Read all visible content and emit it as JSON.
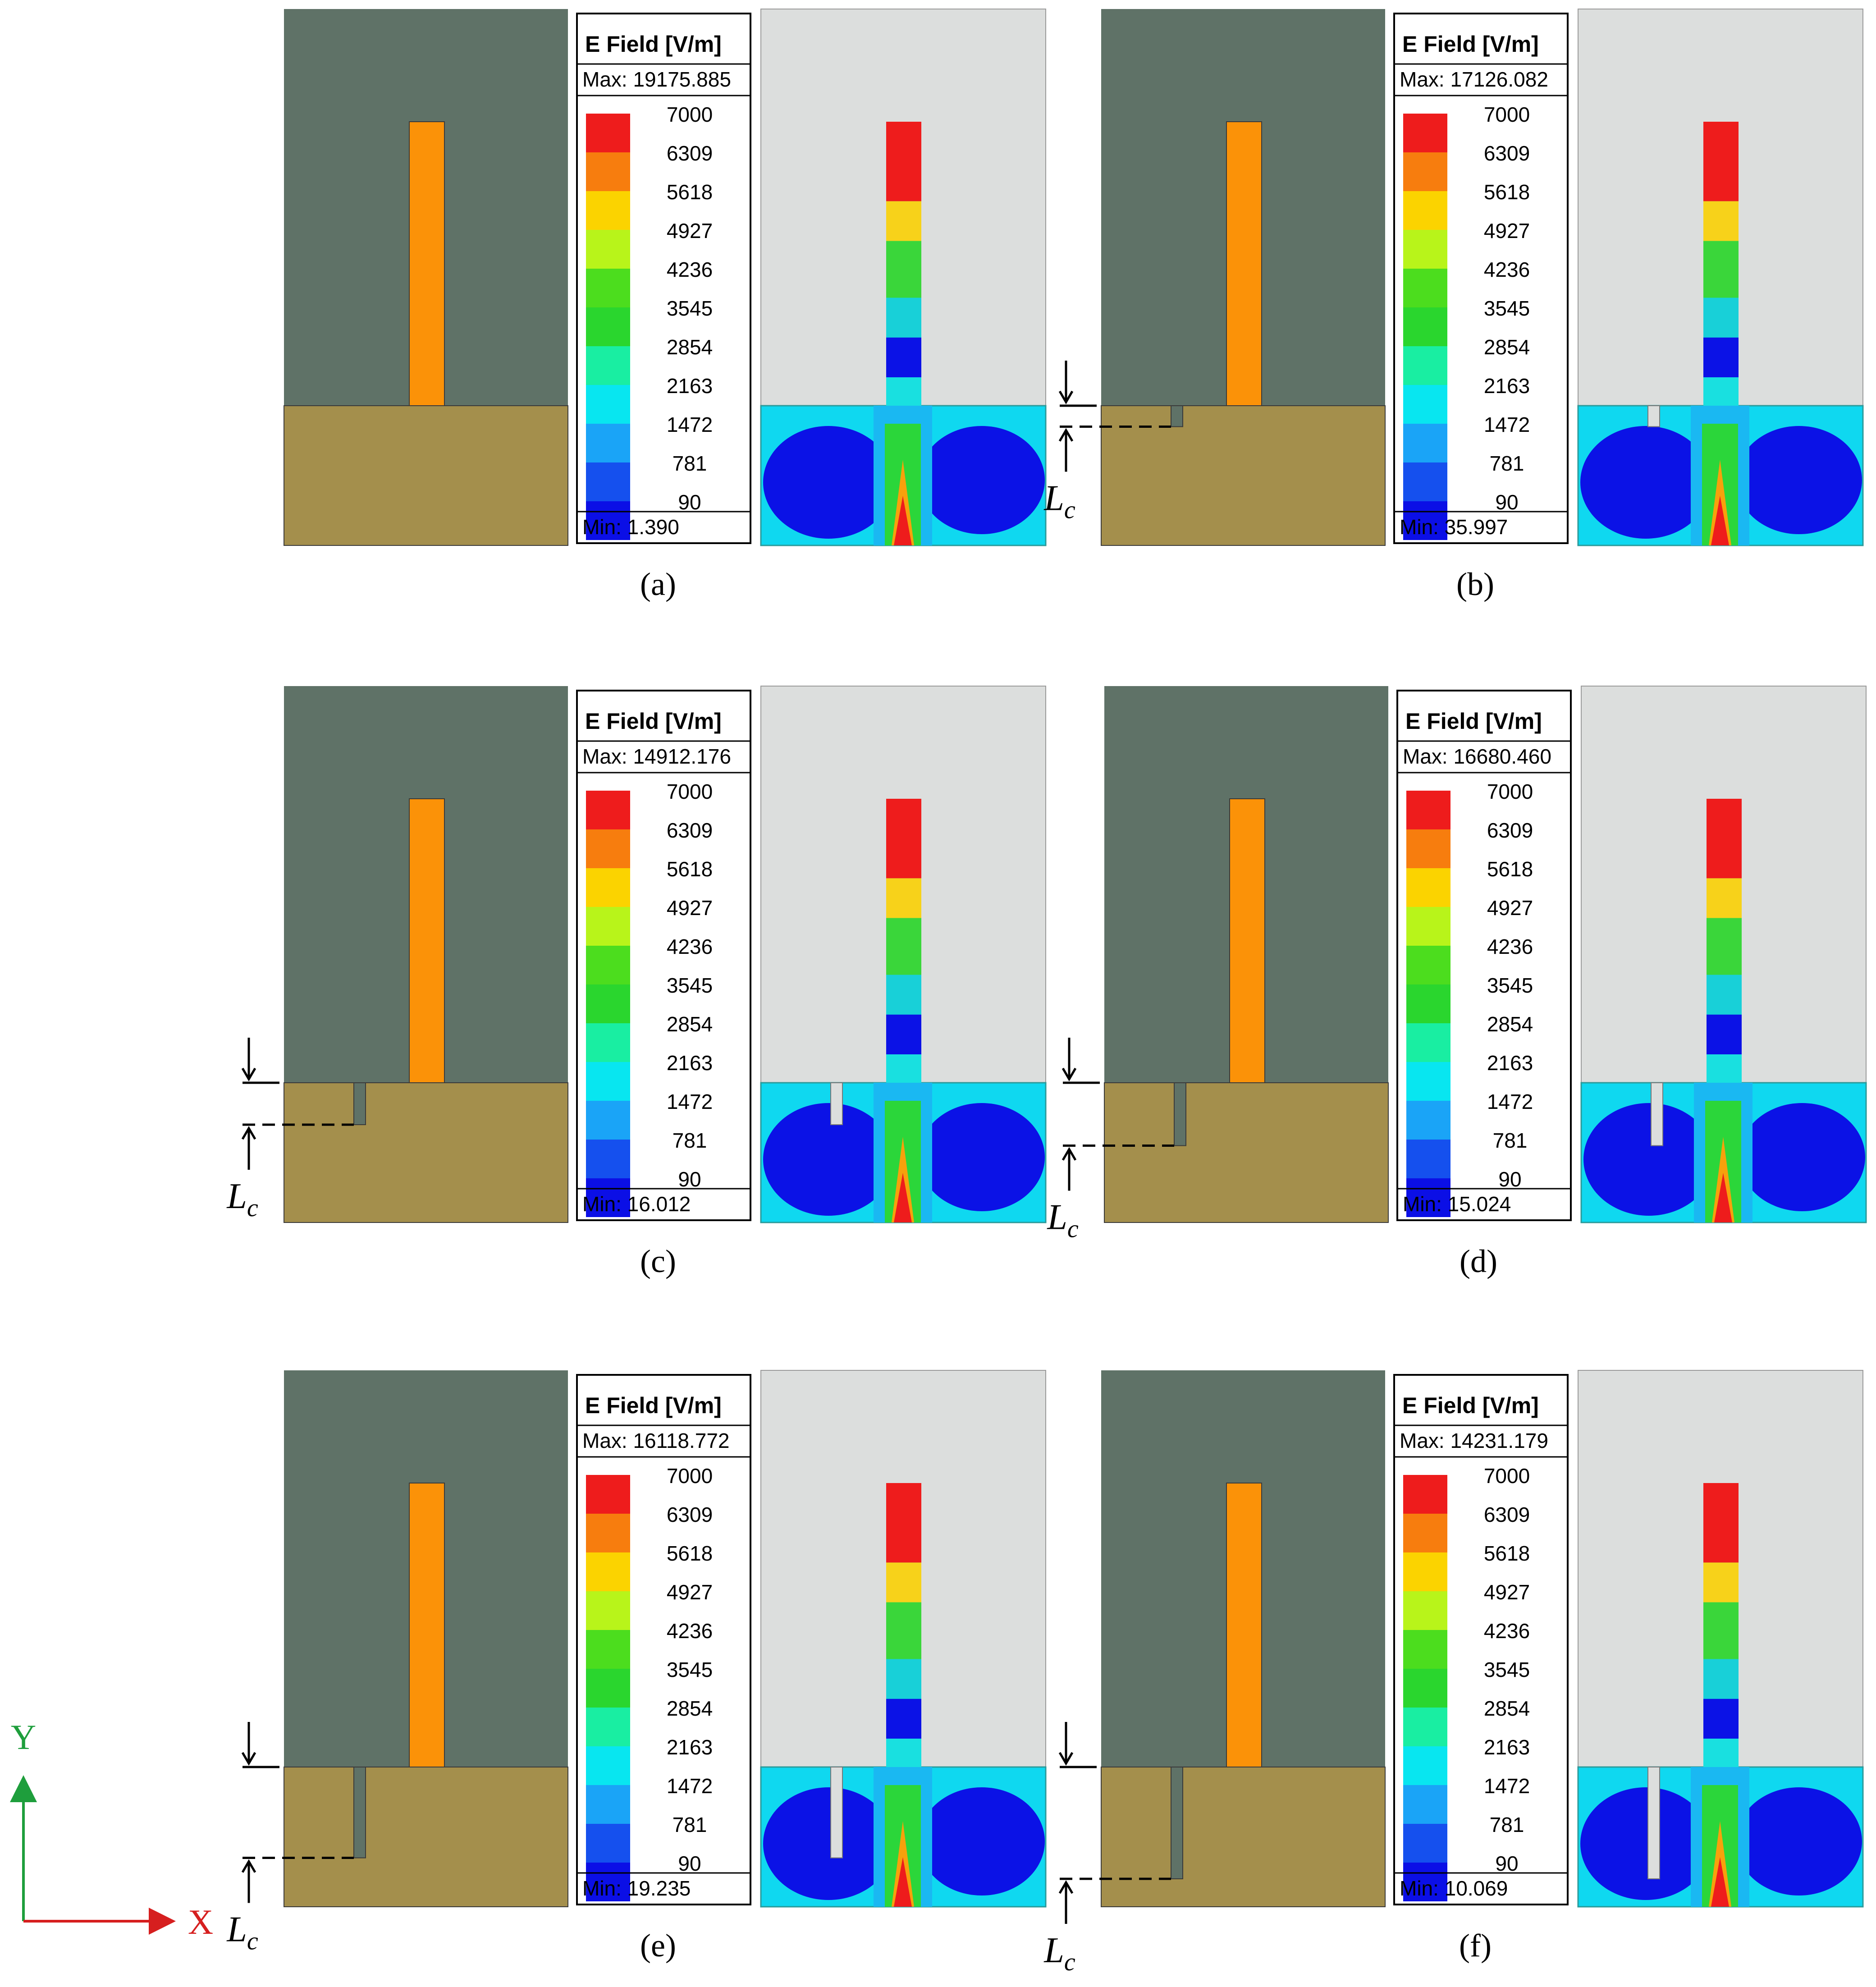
{
  "figure": {
    "legend_title": "E Field [V/m]",
    "max_prefix": "Max:",
    "min_prefix": "Min:",
    "scale_values": [
      "7000",
      "6309",
      "5618",
      "4927",
      "4236",
      "3545",
      "2854",
      "2163",
      "1472",
      "781",
      "90"
    ],
    "scale_colors": [
      "#ee1c1c",
      "#f77d0e",
      "#fbd300",
      "#b8f41a",
      "#4cdd1e",
      "#2ad62e",
      "#19eea2",
      "#08e6f0",
      "#1aa4f7",
      "#1550ee",
      "#0b0fe6"
    ],
    "length_symbol": "L",
    "length_subscript": "c",
    "colors": {
      "air": "#5f7267",
      "substrate": "#a48f4c",
      "electrode": "#fb9208",
      "slot": "#5f7267",
      "field_bg": "#dcdedd",
      "arrow": "#000000"
    },
    "panels": [
      {
        "label": "(a)",
        "max": "19175.885",
        "min": "1.390",
        "slot_depth": 0
      },
      {
        "label": "(b)",
        "max": "17126.082",
        "min": "35.997",
        "slot_depth": 0.15
      },
      {
        "label": "(c)",
        "max": "14912.176",
        "min": "16.012",
        "slot_depth": 0.3
      },
      {
        "label": "(d)",
        "max": "16680.460",
        "min": "15.024",
        "slot_depth": 0.45
      },
      {
        "label": "(e)",
        "max": "16118.772",
        "min": "19.235",
        "slot_depth": 0.65
      },
      {
        "label": "(f)",
        "max": "14231.179",
        "min": "10.069",
        "slot_depth": 0.8
      }
    ]
  },
  "axes": {
    "x_label": "X",
    "y_label": "Y",
    "x_color": "#d61f1f",
    "y_color": "#1e9e3c"
  }
}
